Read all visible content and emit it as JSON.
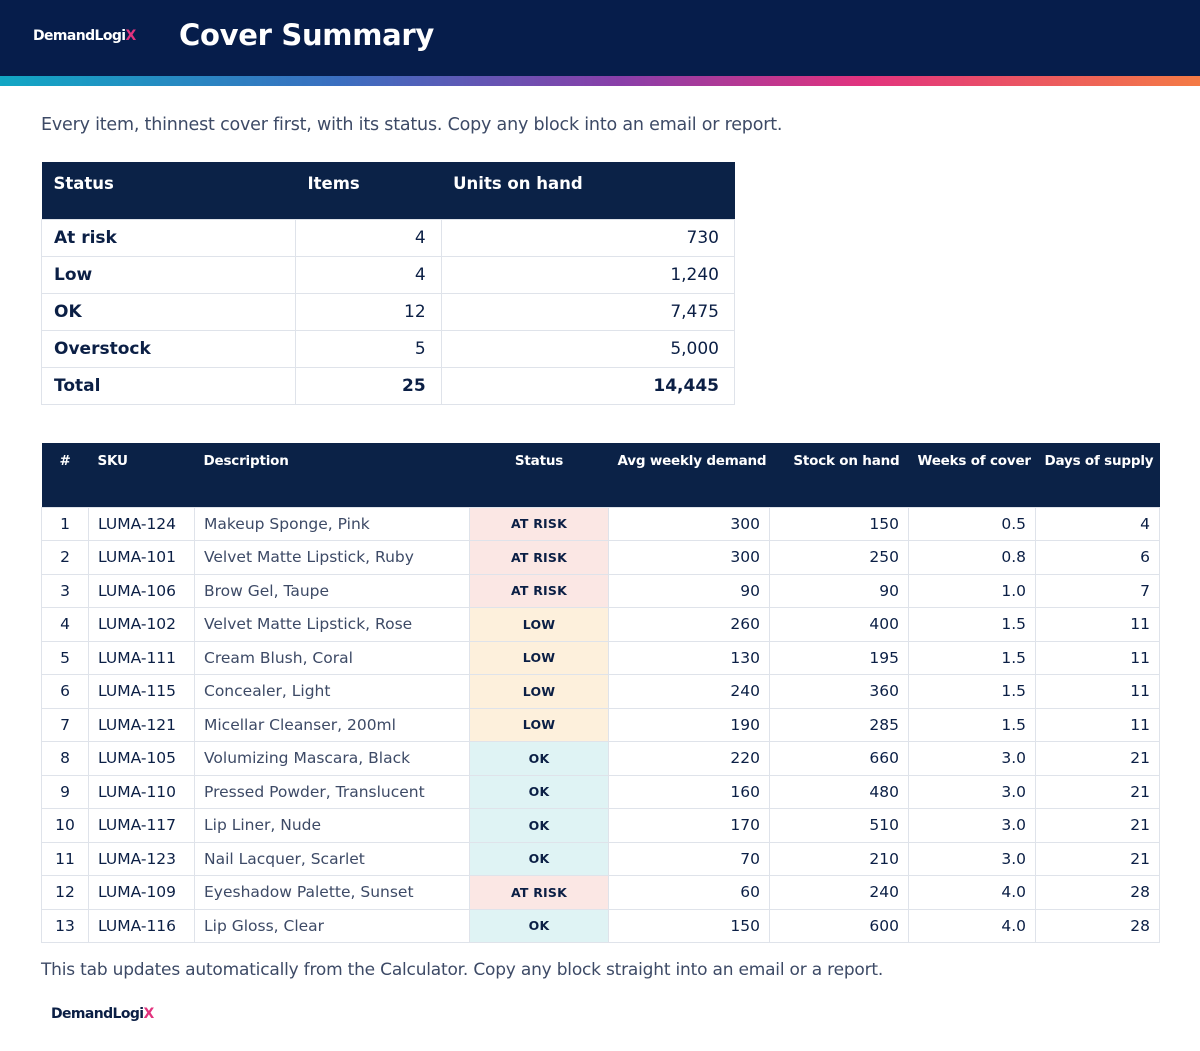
{
  "brand": {
    "logo_main": "DemandLogi",
    "logo_x": "X"
  },
  "header": {
    "title": "Cover Summary"
  },
  "intro": "Every item, thinnest cover first, with its status. Copy any block into an email or report.",
  "summary": {
    "headers": [
      "Status",
      "Items",
      "Units on hand"
    ],
    "rows": [
      {
        "status": "At risk",
        "items": "4",
        "units": "730"
      },
      {
        "status": "Low",
        "items": "4",
        "units": "1,240"
      },
      {
        "status": "OK",
        "items": "12",
        "units": "7,475"
      },
      {
        "status": "Overstock",
        "items": "5",
        "units": "5,000"
      },
      {
        "status": "Total",
        "items": "25",
        "units": "14,445"
      }
    ]
  },
  "detail": {
    "headers": [
      "#",
      "SKU",
      "Description",
      "Status",
      "Avg weekly demand",
      "Stock on hand",
      "Weeks of cover",
      "Days of supply"
    ],
    "rows": [
      {
        "n": "1",
        "sku": "LUMA-124",
        "desc": "Makeup Sponge, Pink",
        "status": "AT RISK",
        "kind": "risk",
        "demand": "300",
        "stock": "150",
        "weeks": "0.5",
        "days": "4"
      },
      {
        "n": "2",
        "sku": "LUMA-101",
        "desc": "Velvet Matte Lipstick, Ruby",
        "status": "AT RISK",
        "kind": "risk",
        "demand": "300",
        "stock": "250",
        "weeks": "0.8",
        "days": "6"
      },
      {
        "n": "3",
        "sku": "LUMA-106",
        "desc": "Brow Gel, Taupe",
        "status": "AT RISK",
        "kind": "risk",
        "demand": "90",
        "stock": "90",
        "weeks": "1.0",
        "days": "7"
      },
      {
        "n": "4",
        "sku": "LUMA-102",
        "desc": "Velvet Matte Lipstick, Rose",
        "status": "LOW",
        "kind": "low",
        "demand": "260",
        "stock": "400",
        "weeks": "1.5",
        "days": "11"
      },
      {
        "n": "5",
        "sku": "LUMA-111",
        "desc": "Cream Blush, Coral",
        "status": "LOW",
        "kind": "low",
        "demand": "130",
        "stock": "195",
        "weeks": "1.5",
        "days": "11"
      },
      {
        "n": "6",
        "sku": "LUMA-115",
        "desc": "Concealer, Light",
        "status": "LOW",
        "kind": "low",
        "demand": "240",
        "stock": "360",
        "weeks": "1.5",
        "days": "11"
      },
      {
        "n": "7",
        "sku": "LUMA-121",
        "desc": "Micellar Cleanser, 200ml",
        "status": "LOW",
        "kind": "low",
        "demand": "190",
        "stock": "285",
        "weeks": "1.5",
        "days": "11"
      },
      {
        "n": "8",
        "sku": "LUMA-105",
        "desc": "Volumizing Mascara, Black",
        "status": "OK",
        "kind": "ok",
        "demand": "220",
        "stock": "660",
        "weeks": "3.0",
        "days": "21"
      },
      {
        "n": "9",
        "sku": "LUMA-110",
        "desc": "Pressed Powder, Translucent",
        "status": "OK",
        "kind": "ok",
        "demand": "160",
        "stock": "480",
        "weeks": "3.0",
        "days": "21"
      },
      {
        "n": "10",
        "sku": "LUMA-117",
        "desc": "Lip Liner, Nude",
        "status": "OK",
        "kind": "ok",
        "demand": "170",
        "stock": "510",
        "weeks": "3.0",
        "days": "21"
      },
      {
        "n": "11",
        "sku": "LUMA-123",
        "desc": "Nail Lacquer, Scarlet",
        "status": "OK",
        "kind": "ok",
        "demand": "70",
        "stock": "210",
        "weeks": "3.0",
        "days": "21"
      },
      {
        "n": "12",
        "sku": "LUMA-109",
        "desc": "Eyeshadow Palette, Sunset",
        "status": "AT RISK",
        "kind": "risk",
        "demand": "60",
        "stock": "240",
        "weeks": "4.0",
        "days": "28"
      },
      {
        "n": "13",
        "sku": "LUMA-116",
        "desc": "Lip Gloss, Clear",
        "status": "OK",
        "kind": "ok",
        "demand": "150",
        "stock": "600",
        "weeks": "4.0",
        "days": "28"
      }
    ]
  },
  "footnote": "This tab updates automatically from the Calculator. Copy any block straight into an email or a report."
}
